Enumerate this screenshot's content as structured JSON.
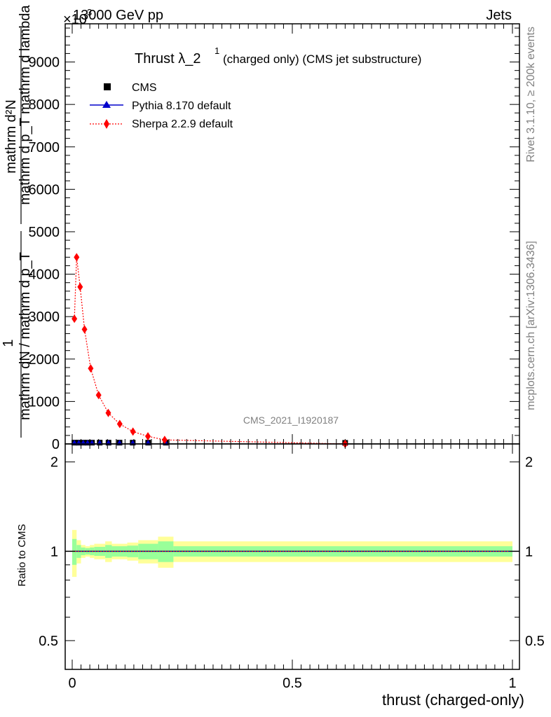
{
  "header": {
    "left": "13000 GeV pp",
    "right": "Jets",
    "exponent_marker": "×10",
    "exponent_power": "3"
  },
  "side_labels": {
    "rivet": "Rivet 3.1.10, ≥ 200k events",
    "mcplots": "mcplots.cern.ch [arXiv:1306.3436]"
  },
  "watermark": "CMS_2021_I1920187",
  "chart_data": [
    {
      "type": "line",
      "title_main": "Thrust λ_2",
      "title_sup": "1",
      "title_rest": "(charged only) (CMS jet substructure)",
      "ylabel_numerator": "mathrm d²N",
      "ylabel_fraction_one": "1",
      "ylabel_line2": "mathrm d p_T mathrm d lambda",
      "ylabel_line3": "mathrm dN / mathrm d p_T",
      "xlim": [
        0,
        1
      ],
      "ylim": [
        0,
        9900
      ],
      "y_ticks": [
        {
          "value": 0,
          "label": "0"
        },
        {
          "value": 1000,
          "label": "1000"
        },
        {
          "value": 2000,
          "label": "2000"
        },
        {
          "value": 3000,
          "label": "3000"
        },
        {
          "value": 4000,
          "label": "4000"
        },
        {
          "value": 5000,
          "label": "5000"
        },
        {
          "value": 6000,
          "label": "6000"
        },
        {
          "value": 7000,
          "label": "7000"
        },
        {
          "value": 8000,
          "label": "8000"
        },
        {
          "value": 9000,
          "label": "9000"
        }
      ],
      "legend_position": "top-left",
      "series": [
        {
          "name": "CMS",
          "color": "#000000",
          "marker": "square",
          "x": [
            0.005,
            0.015,
            0.025,
            0.035,
            0.045,
            0.0625,
            0.0825,
            0.1075,
            0.1375,
            0.1725,
            0.2125,
            0.62
          ],
          "values": [
            30,
            30,
            30,
            30,
            30,
            30,
            30,
            30,
            30,
            30,
            30,
            25
          ]
        },
        {
          "name": "Pythia 8.170 default",
          "color": "#0000cc",
          "marker": "triangle",
          "x": [
            0.005,
            0.015,
            0.025,
            0.035,
            0.045,
            0.0625,
            0.0825,
            0.1075,
            0.1375,
            0.1725,
            0.2125,
            0.62
          ],
          "values": [
            30,
            30,
            30,
            30,
            30,
            30,
            30,
            30,
            30,
            30,
            30,
            25
          ]
        },
        {
          "name": "Sherpa 2.2.9 default",
          "color": "#ff0000",
          "marker": "diamond",
          "x": [
            0.005,
            0.01,
            0.018,
            0.028,
            0.042,
            0.06,
            0.082,
            0.108,
            0.138,
            0.172,
            0.21,
            0.62
          ],
          "values": [
            2950,
            4400,
            3700,
            2700,
            1780,
            1150,
            730,
            470,
            290,
            180,
            95,
            0
          ]
        }
      ]
    },
    {
      "type": "area",
      "ylabel": "Ratio to CMS",
      "xlabel": "thrust (charged-only)",
      "xlim": [
        0,
        1
      ],
      "ylim": [
        0.4,
        2.3
      ],
      "log_scale": true,
      "x_ticks": [
        {
          "value": 0,
          "label": "0"
        },
        {
          "value": 0.5,
          "label": "0.5"
        },
        {
          "value": 1,
          "label": "1"
        }
      ],
      "y_ticks": [
        {
          "value": 0.5,
          "label": "0.5"
        },
        {
          "value": 1,
          "label": "1"
        },
        {
          "value": 2,
          "label": "2"
        }
      ],
      "bands": {
        "edges": [
          0,
          0.01,
          0.02,
          0.03,
          0.04,
          0.05,
          0.075,
          0.09,
          0.125,
          0.15,
          0.195,
          0.23,
          1.0
        ],
        "yellow_half_width": [
          0.18,
          0.09,
          0.05,
          0.04,
          0.05,
          0.06,
          0.08,
          0.06,
          0.07,
          0.09,
          0.12,
          0.08
        ],
        "green_half_width": [
          0.1,
          0.05,
          0.03,
          0.025,
          0.03,
          0.035,
          0.05,
          0.04,
          0.045,
          0.06,
          0.08,
          0.04
        ]
      },
      "series": [
        {
          "name": "Pythia 8.170 default",
          "color": "#0000cc",
          "values_const": 1.0
        },
        {
          "name": "Sherpa 2.2.9 default",
          "color": "#ff0000",
          "values_const": 1.0
        }
      ]
    }
  ]
}
